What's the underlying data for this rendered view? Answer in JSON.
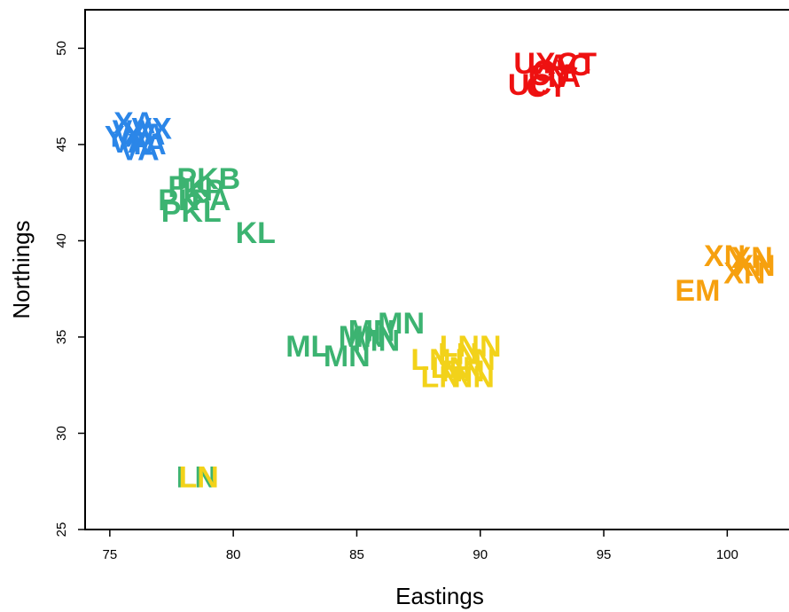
{
  "chart_data": {
    "type": "scatter",
    "title": "",
    "xlabel": "Eastings",
    "ylabel": "Northings",
    "xlim": [
      74,
      102.5
    ],
    "ylim": [
      25,
      52
    ],
    "xticks": [
      75,
      80,
      85,
      90,
      95,
      100
    ],
    "yticks": [
      25,
      30,
      35,
      40,
      45,
      50
    ],
    "grid": false,
    "legend": "none",
    "colors": {
      "red": "#ee1111",
      "blue": "#2b86e8",
      "green": "#3cb371",
      "yellow": "#f2d21a",
      "orange": "#f6a00e"
    },
    "points": [
      {
        "x": 92.2,
        "y": 49.1,
        "label": "UX",
        "color": "red"
      },
      {
        "x": 93.6,
        "y": 49.0,
        "label": "AC",
        "color": "red"
      },
      {
        "x": 93.9,
        "y": 49.1,
        "label": "CT",
        "color": "red"
      },
      {
        "x": 92.8,
        "y": 48.5,
        "label": "CY",
        "color": "red"
      },
      {
        "x": 93.3,
        "y": 48.4,
        "label": "TA",
        "color": "red"
      },
      {
        "x": 92.0,
        "y": 48.0,
        "label": "UC",
        "color": "red"
      },
      {
        "x": 92.7,
        "y": 47.9,
        "label": "CY",
        "color": "red"
      },
      {
        "x": 93.0,
        "y": 48.7,
        "label": "GY",
        "color": "red"
      },
      {
        "x": 75.9,
        "y": 45.6,
        "label": "VA",
        "color": "blue"
      },
      {
        "x": 76.4,
        "y": 45.4,
        "label": "XA",
        "color": "blue"
      },
      {
        "x": 75.8,
        "y": 45.0,
        "label": "VA",
        "color": "blue"
      },
      {
        "x": 76.5,
        "y": 44.9,
        "label": "YA",
        "color": "blue"
      },
      {
        "x": 76.0,
        "y": 46.0,
        "label": "XA",
        "color": "blue"
      },
      {
        "x": 76.7,
        "y": 45.7,
        "label": "VX",
        "color": "blue"
      },
      {
        "x": 75.6,
        "y": 45.3,
        "label": "YX",
        "color": "blue"
      },
      {
        "x": 76.2,
        "y": 44.6,
        "label": "VA",
        "color": "blue"
      },
      {
        "x": 79.0,
        "y": 43.1,
        "label": "PKB",
        "color": "green"
      },
      {
        "x": 78.2,
        "y": 42.7,
        "label": "PK",
        "color": "green"
      },
      {
        "x": 77.8,
        "y": 42.0,
        "label": "PK",
        "color": "green"
      },
      {
        "x": 79.1,
        "y": 42.0,
        "label": "PA",
        "color": "green"
      },
      {
        "x": 78.3,
        "y": 41.4,
        "label": "PKL",
        "color": "green"
      },
      {
        "x": 80.9,
        "y": 40.3,
        "label": "KL",
        "color": "green"
      },
      {
        "x": 78.8,
        "y": 42.5,
        "label": "KP",
        "color": "green"
      },
      {
        "x": 86.8,
        "y": 35.6,
        "label": "MN",
        "color": "green"
      },
      {
        "x": 85.6,
        "y": 35.2,
        "label": "MN",
        "color": "green"
      },
      {
        "x": 85.2,
        "y": 34.9,
        "label": "MN",
        "color": "green"
      },
      {
        "x": 85.8,
        "y": 34.7,
        "label": "MN",
        "color": "green"
      },
      {
        "x": 83.0,
        "y": 34.4,
        "label": "ML",
        "color": "green"
      },
      {
        "x": 84.6,
        "y": 33.9,
        "label": "MN",
        "color": "green"
      },
      {
        "x": 78.5,
        "y": 27.6,
        "label": "LN",
        "color": "green"
      },
      {
        "x": 89.6,
        "y": 34.4,
        "label": "LNN",
        "color": "yellow"
      },
      {
        "x": 89.1,
        "y": 34.0,
        "label": "LN",
        "color": "yellow"
      },
      {
        "x": 88.0,
        "y": 33.7,
        "label": "LN",
        "color": "yellow"
      },
      {
        "x": 89.8,
        "y": 33.7,
        "label": "LN",
        "color": "yellow"
      },
      {
        "x": 88.8,
        "y": 33.3,
        "label": "LN",
        "color": "yellow"
      },
      {
        "x": 89.3,
        "y": 33.1,
        "label": "NN",
        "color": "yellow"
      },
      {
        "x": 88.4,
        "y": 32.8,
        "label": "LN",
        "color": "yellow"
      },
      {
        "x": 89.7,
        "y": 32.8,
        "label": "NN",
        "color": "yellow"
      },
      {
        "x": 78.6,
        "y": 27.6,
        "label": "LN",
        "color": "yellow"
      },
      {
        "x": 99.9,
        "y": 39.1,
        "label": "XN",
        "color": "orange"
      },
      {
        "x": 101.0,
        "y": 39.0,
        "label": "XN",
        "color": "orange"
      },
      {
        "x": 101.1,
        "y": 38.6,
        "label": "XN",
        "color": "orange"
      },
      {
        "x": 100.7,
        "y": 38.2,
        "label": "XN",
        "color": "orange"
      },
      {
        "x": 98.8,
        "y": 37.3,
        "label": "EM",
        "color": "orange"
      }
    ]
  }
}
